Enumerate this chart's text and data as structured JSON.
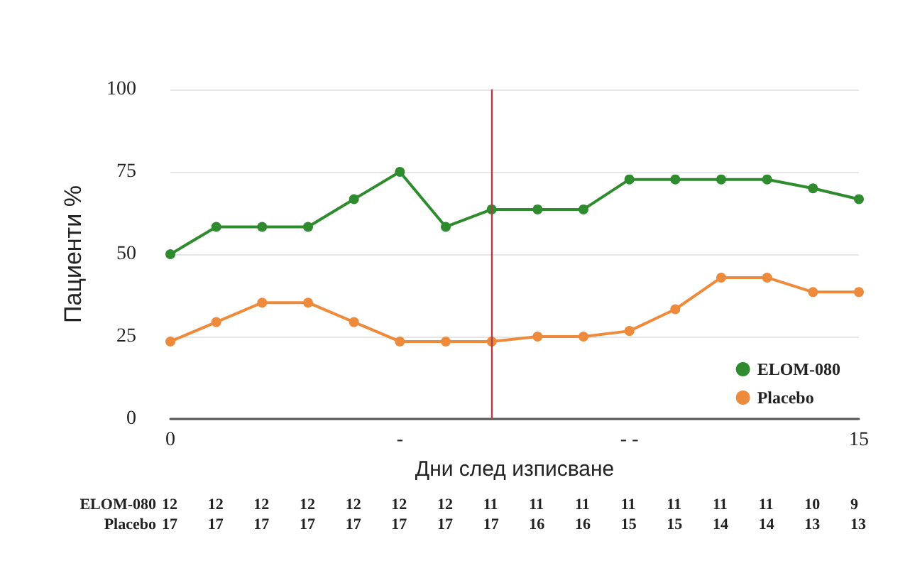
{
  "chart_data": {
    "type": "line",
    "xlabel": "Дни след изписване",
    "ylabel": "Пациенти %",
    "x": [
      0,
      1,
      2,
      3,
      4,
      5,
      6,
      7,
      8,
      9,
      10,
      11,
      12,
      13,
      14,
      15
    ],
    "series": [
      {
        "name": "ELOM-080",
        "color": "#2e8b2e",
        "values": [
          50,
          58.3,
          58.3,
          58.3,
          66.7,
          75,
          58.3,
          63.6,
          63.6,
          63.6,
          72.7,
          72.7,
          72.7,
          72.7,
          70,
          66.7
        ]
      },
      {
        "name": "Placebo",
        "color": "#ee8a3c",
        "values": [
          23.5,
          29.4,
          35.3,
          35.3,
          29.4,
          23.5,
          23.5,
          23.5,
          25,
          25,
          26.7,
          33.3,
          42.9,
          42.9,
          38.5,
          38.5
        ]
      }
    ],
    "xlim": [
      0,
      15
    ],
    "xticks": [
      0,
      {
        "value": 5,
        "label": "-"
      },
      {
        "value": 10,
        "label": "- -"
      },
      15
    ],
    "ylim": [
      0,
      100
    ],
    "yticks": [
      0,
      25,
      50,
      75,
      100
    ],
    "ref_lines": [
      {
        "axis": "x",
        "value": 7,
        "color": "#b03a48"
      }
    ],
    "annotations": [
      "ELOM-080 12 12 12 12 12 12 12 11 11 11 11 11 11 11 10 9",
      "Placebo 17 17 17 17 17 17 17 17 16 16 15 15 14 14 13 13"
    ],
    "grid": "y",
    "legend": "bottom right",
    "marker": "circle",
    "line_style": "solid"
  }
}
